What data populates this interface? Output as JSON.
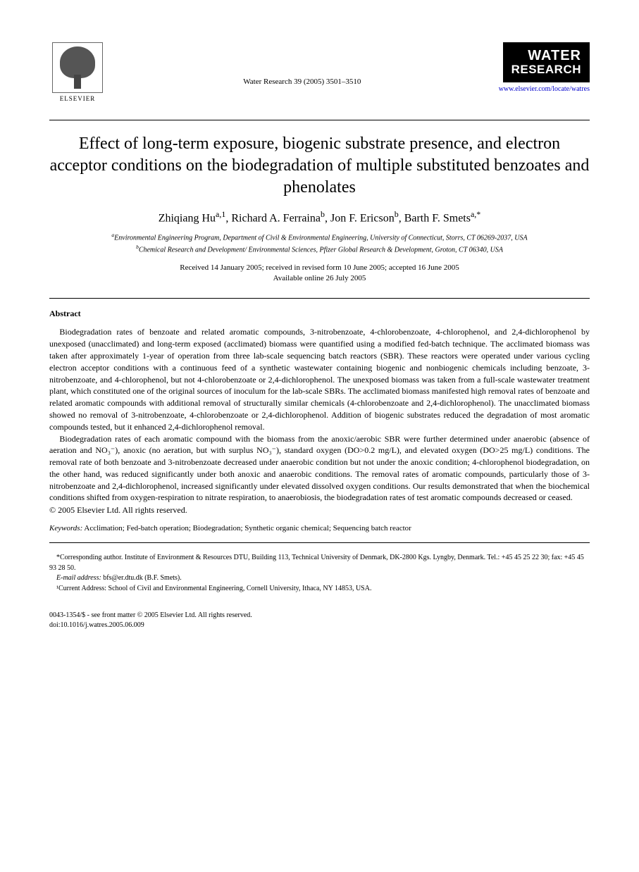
{
  "header": {
    "publisher_label": "ELSEVIER",
    "citation": "Water Research 39 (2005) 3501–3510",
    "journal_name_line1": "WATER",
    "journal_name_line2": "RESEARCH",
    "journal_url": "www.elsevier.com/locate/watres"
  },
  "title": "Effect of long-term exposure, biogenic substrate presence, and electron acceptor conditions on the biodegradation of multiple substituted benzoates and phenolates",
  "authors_html": "Zhiqiang Hu<sup>a,1</sup>, Richard A. Ferraina<sup>b</sup>, Jon F. Ericson<sup>b</sup>, Barth F. Smets<sup>a,*</sup>",
  "affiliations": {
    "a": "Environmental Engineering Program, Department of Civil & Environmental Engineering, University of Connecticut, Storrs, CT 06269-2037, USA",
    "b": "Chemical Research and Development/ Environmental Sciences, Pfizer Global Research & Development, Groton, CT 06340, USA"
  },
  "dates": {
    "received": "Received 14 January 2005; received in revised form 10 June 2005; accepted 16 June 2005",
    "online": "Available online 26 July 2005"
  },
  "abstract": {
    "label": "Abstract",
    "p1": "Biodegradation rates of benzoate and related aromatic compounds, 3-nitrobenzoate, 4-chlorobenzoate, 4-chlorophenol, and 2,4-dichlorophenol by unexposed (unacclimated) and long-term exposed (acclimated) biomass were quantified using a modified fed-batch technique. The acclimated biomass was taken after approximately 1-year of operation from three lab-scale sequencing batch reactors (SBR). These reactors were operated under various cycling electron acceptor conditions with a continuous feed of a synthetic wastewater containing biogenic and nonbiogenic chemicals including benzoate, 3-nitrobenzoate, and 4-chlorophenol, but not 4-chlorobenzoate or 2,4-dichlorophenol. The unexposed biomass was taken from a full-scale wastewater treatment plant, which constituted one of the original sources of inoculum for the lab-scale SBRs. The acclimated biomass manifested high removal rates of benzoate and related aromatic compounds with additional removal of structurally similar chemicals (4-chlorobenzoate and 2,4-dichlorophenol). The unacclimated biomass showed no removal of 3-nitrobenzoate, 4-chlorobenzoate or 2,4-dichlorophenol. Addition of biogenic substrates reduced the degradation of most aromatic compounds tested, but it enhanced 2,4-dichlorophenol removal.",
    "p2": "Biodegradation rates of each aromatic compound with the biomass from the anoxic/aerobic SBR were further determined under anaerobic (absence of aeration and NO₃⁻), anoxic (no aeration, but with surplus NO₃⁻), standard oxygen (DO>0.2 mg/L), and elevated oxygen (DO>25 mg/L) conditions. The removal rate of both benzoate and 3-nitrobenzoate decreased under anaerobic condition but not under the anoxic condition; 4-chlorophenol biodegradation, on the other hand, was reduced significantly under both anoxic and anaerobic conditions. The removal rates of aromatic compounds, particularly those of 3-nitrobenzoate and 2,4-dichlorophenol, increased significantly under elevated dissolved oxygen conditions. Our results demonstrated that when the biochemical conditions shifted from oxygen-respiration to nitrate respiration, to anaerobiosis, the biodegradation rates of test aromatic compounds decreased or ceased.",
    "copyright": "© 2005 Elsevier Ltd. All rights reserved."
  },
  "keywords": {
    "label": "Keywords:",
    "text": "Acclimation; Fed-batch operation; Biodegradation; Synthetic organic chemical; Sequencing batch reactor"
  },
  "footnotes": {
    "corresponding": "*Corresponding author. Institute of Environment & Resources DTU, Building 113, Technical University of Denmark, DK-2800 Kgs. Lyngby, Denmark. Tel.: +45 45 25 22 30; fax: +45 45 93 28 50.",
    "email_label": "E-mail address:",
    "email": "bfs@er.dtu.dk (B.F. Smets).",
    "note1": "¹Current Address: School of Civil and Environmental Engineering, Cornell University, Ithaca, NY 14853, USA."
  },
  "footer": {
    "front": "0043-1354/$ - see front matter © 2005 Elsevier Ltd. All rights reserved.",
    "doi": "doi:10.1016/j.watres.2005.06.009"
  }
}
